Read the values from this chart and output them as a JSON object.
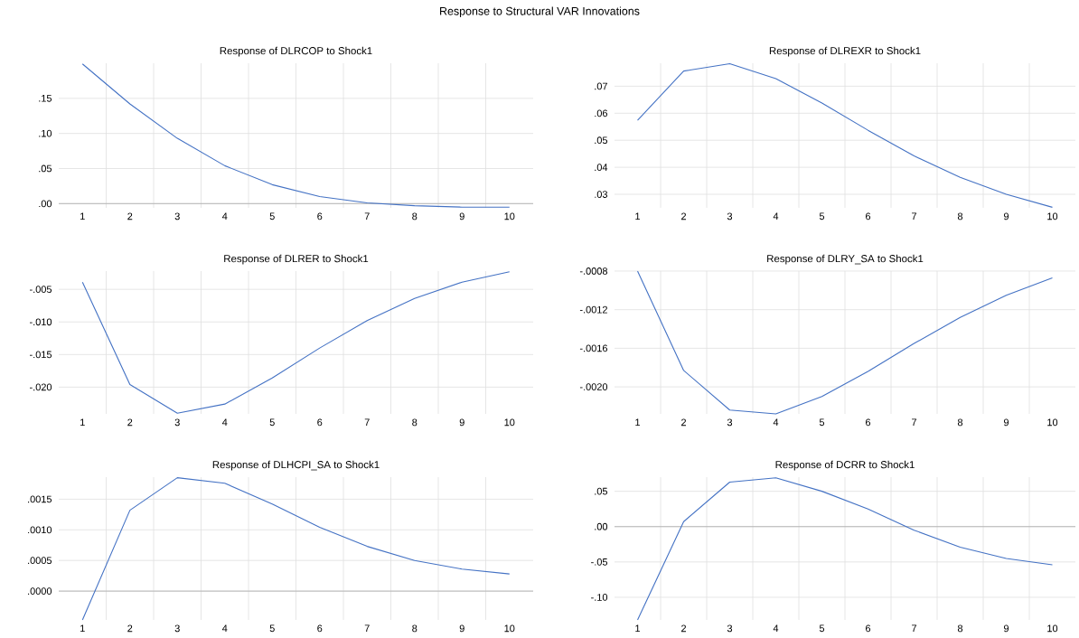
{
  "chart_data": [
    {
      "type": "line",
      "title": "Response of DLRCOP to Shock1",
      "annotations": [
        "Response to Structural VAR Innovations"
      ],
      "categories": [
        "1",
        "2",
        "3",
        "4",
        "5",
        "6",
        "7",
        "8",
        "9",
        "10"
      ],
      "values": [
        0.199,
        0.142,
        0.093,
        0.054,
        0.027,
        0.01,
        0.001,
        -0.003,
        -0.005,
        -0.005
      ],
      "color": "#4472c4",
      "ylim": [
        -0.006,
        0.2
      ],
      "yticks": [
        {
          "value": 0,
          "label": ".00"
        },
        {
          "value": 0.05,
          "label": ".05"
        },
        {
          "value": 0.1,
          "label": ".10"
        },
        {
          "value": 0.15,
          "label": ".15"
        }
      ],
      "grid": true
    },
    {
      "type": "line",
      "title": "Response of DLREXR to Shock1",
      "categories": [
        "1",
        "2",
        "3",
        "4",
        "5",
        "6",
        "7",
        "8",
        "9",
        "10"
      ],
      "values": [
        0.0574,
        0.0756,
        0.0783,
        0.0728,
        0.0638,
        0.0537,
        0.0442,
        0.0363,
        0.03,
        0.0252
      ],
      "color": "#4472c4",
      "ylim": [
        0.025,
        0.0785
      ],
      "yticks": [
        {
          "value": 0.03,
          "label": ".03"
        },
        {
          "value": 0.04,
          "label": ".04"
        },
        {
          "value": 0.05,
          "label": ".05"
        },
        {
          "value": 0.06,
          "label": ".06"
        },
        {
          "value": 0.07,
          "label": ".07"
        }
      ],
      "grid": true
    },
    {
      "type": "line",
      "title": "Response of DLRER to Shock1",
      "categories": [
        "1",
        "2",
        "3",
        "4",
        "5",
        "6",
        "7",
        "8",
        "9",
        "10"
      ],
      "values": [
        -0.0039,
        -0.0196,
        -0.024,
        -0.0226,
        -0.0186,
        -0.014,
        -0.0098,
        -0.0064,
        -0.0039,
        -0.0023
      ],
      "color": "#4472c4",
      "ylim": [
        -0.0241,
        -0.0022
      ],
      "yticks": [
        {
          "value": -0.02,
          "label": "-.020"
        },
        {
          "value": -0.015,
          "label": "-.015"
        },
        {
          "value": -0.01,
          "label": "-.010"
        },
        {
          "value": -0.005,
          "label": "-.005"
        }
      ],
      "grid": true
    },
    {
      "type": "line",
      "title": "Response of DLRY_SA to Shock1",
      "categories": [
        "1",
        "2",
        "3",
        "4",
        "5",
        "6",
        "7",
        "8",
        "9",
        "10"
      ],
      "values": [
        -0.0008,
        -0.00183,
        -0.00224,
        -0.00228,
        -0.0021,
        -0.00184,
        -0.00155,
        -0.00128,
        -0.00105,
        -0.00087
      ],
      "color": "#4472c4",
      "ylim": [
        -0.00228,
        -0.0008
      ],
      "yticks": [
        {
          "value": -0.002,
          "label": "-.0020"
        },
        {
          "value": -0.0016,
          "label": "-.0016"
        },
        {
          "value": -0.0012,
          "label": "-.0012"
        },
        {
          "value": -0.0008,
          "label": "-.0008"
        }
      ],
      "grid": true
    },
    {
      "type": "line",
      "title": "Response of DLHCPI_SA to Shock1",
      "categories": [
        "1",
        "2",
        "3",
        "4",
        "5",
        "6",
        "7",
        "8",
        "9",
        "10"
      ],
      "values": [
        -0.00047,
        0.00132,
        0.00185,
        0.00176,
        0.00142,
        0.00104,
        0.00073,
        0.0005,
        0.00036,
        0.00028
      ],
      "color": "#4472c4",
      "ylim": [
        -0.00047,
        0.00186
      ],
      "yticks": [
        {
          "value": 0,
          "label": ".0000"
        },
        {
          "value": 0.0005,
          "label": ".0005"
        },
        {
          "value": 0.001,
          "label": ".0010"
        },
        {
          "value": 0.0015,
          "label": ".0015"
        }
      ],
      "grid": true
    },
    {
      "type": "line",
      "title": "Response of DCRR to Shock1",
      "categories": [
        "1",
        "2",
        "3",
        "4",
        "5",
        "6",
        "7",
        "8",
        "9",
        "10"
      ],
      "values": [
        -0.132,
        0.007,
        0.063,
        0.069,
        0.05,
        0.025,
        -0.005,
        -0.029,
        -0.045,
        -0.054
      ],
      "color": "#4472c4",
      "ylim": [
        -0.132,
        0.07
      ],
      "yticks": [
        {
          "value": -0.1,
          "label": "-.10"
        },
        {
          "value": -0.05,
          "label": "-.05"
        },
        {
          "value": 0,
          "label": ".00"
        },
        {
          "value": 0.05,
          "label": ".05"
        }
      ],
      "grid": true
    }
  ]
}
